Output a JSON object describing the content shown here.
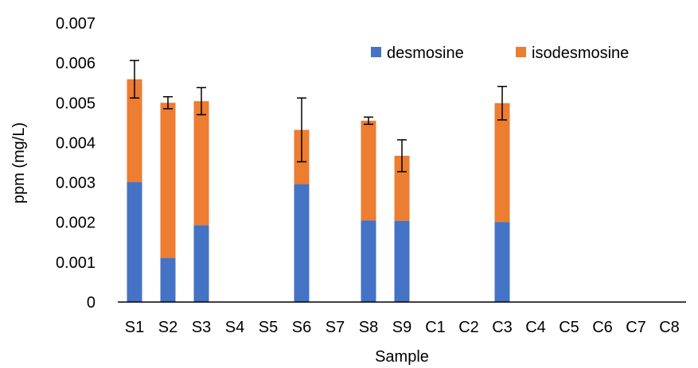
{
  "chart_data": {
    "type": "bar",
    "stacked": true,
    "xlabel": "Sample",
    "ylabel": "ppm (mg/L)",
    "ylim": [
      0,
      0.007
    ],
    "yticks": [
      "0",
      "0.001",
      "0.002",
      "0.003",
      "0.004",
      "0.005",
      "0.006",
      "0.007"
    ],
    "grid": false,
    "legend_position": "top-right",
    "categories": [
      "S1",
      "S2",
      "S3",
      "S4",
      "S5",
      "S6",
      "S7",
      "S8",
      "S9",
      "C1",
      "C2",
      "C3",
      "C4",
      "C5",
      "C6",
      "C7",
      "C8"
    ],
    "series": [
      {
        "name": "desmosine",
        "color": "#4472C4",
        "values": [
          0.00301,
          0.00111,
          0.00193,
          0,
          0,
          0.00296,
          0,
          0.00205,
          0.00204,
          0,
          0,
          0.00201,
          0,
          0,
          0,
          0,
          0
        ]
      },
      {
        "name": "isodesmosine",
        "color": "#ED7D31",
        "values": [
          0.00258,
          0.00389,
          0.00311,
          0,
          0,
          0.00136,
          0,
          0.0025,
          0.00163,
          0,
          0,
          0.00298,
          0,
          0,
          0,
          0,
          0
        ]
      }
    ],
    "error_bars": [
      0.00047,
      0.00015,
      0.00034,
      null,
      null,
      0.0008,
      null,
      9e-05,
      0.0004,
      null,
      null,
      0.00042,
      null,
      null,
      null,
      null,
      null
    ]
  }
}
